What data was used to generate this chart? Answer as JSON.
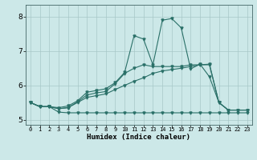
{
  "background_color": "#cce8e8",
  "grid_color": "#b0c8c8",
  "line_color": "#2a7068",
  "xlabel": "Humidex (Indice chaleur)",
  "xlim": [
    -0.5,
    23.5
  ],
  "ylim": [
    4.85,
    8.35
  ],
  "yticks": [
    5,
    6,
    7,
    8
  ],
  "series": [
    {
      "x": [
        0,
        1,
        2,
        3,
        4,
        5,
        6,
        7,
        8,
        9,
        10,
        11,
        12,
        13,
        14,
        15,
        16,
        17,
        18,
        19,
        20,
        21,
        22,
        23
      ],
      "y": [
        5.5,
        5.38,
        5.38,
        5.35,
        5.4,
        5.55,
        5.8,
        5.85,
        5.9,
        6.08,
        6.38,
        7.45,
        7.35,
        6.6,
        7.9,
        7.95,
        7.68,
        6.48,
        6.62,
        6.25,
        5.5,
        5.28,
        5.28,
        5.28
      ]
    },
    {
      "x": [
        0,
        1,
        2,
        3,
        4,
        5,
        6,
        7,
        8,
        9,
        10,
        11,
        12,
        13,
        14,
        15,
        16,
        17,
        18,
        19,
        20,
        21,
        22,
        23
      ],
      "y": [
        5.5,
        5.38,
        5.38,
        5.32,
        5.35,
        5.52,
        5.72,
        5.78,
        5.82,
        6.05,
        6.35,
        6.5,
        6.6,
        6.55,
        6.55,
        6.55,
        6.55,
        6.6,
        6.6,
        6.62,
        5.5,
        5.28,
        5.28,
        5.28
      ]
    },
    {
      "x": [
        0,
        1,
        2,
        3,
        4,
        5,
        6,
        7,
        8,
        9,
        10,
        11,
        12,
        13,
        14,
        15,
        16,
        17,
        18,
        19,
        20,
        21,
        22,
        23
      ],
      "y": [
        5.5,
        5.38,
        5.38,
        5.32,
        5.35,
        5.5,
        5.65,
        5.7,
        5.75,
        5.88,
        6.0,
        6.12,
        6.22,
        6.35,
        6.42,
        6.46,
        6.5,
        6.55,
        6.6,
        6.6,
        5.5,
        5.28,
        5.28,
        5.28
      ]
    },
    {
      "x": [
        0,
        1,
        2,
        3,
        4,
        5,
        6,
        7,
        8,
        9,
        10,
        11,
        12,
        13,
        14,
        15,
        16,
        17,
        18,
        19,
        20,
        21,
        22,
        23
      ],
      "y": [
        5.5,
        5.38,
        5.38,
        5.22,
        5.2,
        5.2,
        5.2,
        5.2,
        5.2,
        5.2,
        5.2,
        5.2,
        5.2,
        5.2,
        5.2,
        5.2,
        5.2,
        5.2,
        5.2,
        5.2,
        5.2,
        5.2,
        5.2,
        5.2
      ]
    }
  ]
}
